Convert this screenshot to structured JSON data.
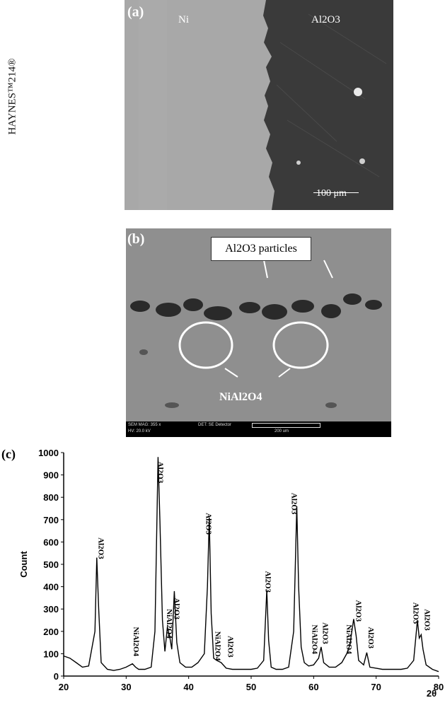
{
  "panel_a": {
    "letter": "(a)",
    "left_label": "Ni",
    "right_label": "Al2O3",
    "side_label": "HAYNES™214®",
    "scale_bar": "100 μm"
  },
  "panel_b": {
    "letter": "(b)",
    "callout": "Al2O3 particles",
    "bottom_label": "NiAl2O4",
    "sem_strip": {
      "mag": "SEM MAG: 355 x",
      "hv": "HV: 20.0 kV",
      "det": "DET: SE Detector",
      "scale": "200 um"
    }
  },
  "panel_c": {
    "letter": "(c)"
  },
  "chart_data": {
    "type": "line",
    "xlabel": "2θ",
    "ylabel": "Count",
    "xlim": [
      20,
      80
    ],
    "ylim": [
      0,
      1000
    ],
    "xticks": [
      20,
      30,
      40,
      50,
      60,
      70,
      80
    ],
    "yticks": [
      0,
      100,
      200,
      300,
      400,
      500,
      600,
      700,
      800,
      900,
      1000
    ],
    "series": [
      {
        "x": [
          20,
          21,
          22,
          23,
          24,
          25,
          25.3,
          25.6,
          26,
          27,
          28,
          29,
          30,
          31,
          31.5,
          32,
          33,
          34,
          34.6,
          35.1,
          35.4,
          35.8,
          36.2,
          36.6,
          37.0,
          37.3,
          37.7,
          38.1,
          38.6,
          39.5,
          40.5,
          41.5,
          42.5,
          43.0,
          43.3,
          43.6,
          44,
          44.5,
          45.2,
          46,
          47,
          48,
          49,
          50,
          51,
          52,
          52.5,
          52.8,
          53.2,
          54,
          55,
          56,
          56.8,
          57.3,
          57.6,
          58,
          58.5,
          59.2,
          60,
          60.8,
          61.2,
          61.6,
          62.5,
          63.5,
          64.5,
          65.3,
          65.8,
          66.4,
          66.8,
          67.2,
          68,
          68.5,
          69,
          70,
          71,
          72,
          73,
          74,
          75,
          76,
          76.6,
          76.9,
          77.2,
          77.5,
          78,
          79,
          80
        ],
        "y": [
          90,
          80,
          60,
          40,
          45,
          200,
          530,
          300,
          60,
          30,
          25,
          30,
          40,
          55,
          40,
          30,
          30,
          40,
          200,
          980,
          700,
          250,
          110,
          220,
          170,
          120,
          380,
          150,
          60,
          40,
          40,
          60,
          100,
          400,
          710,
          280,
          80,
          70,
          60,
          35,
          30,
          30,
          30,
          30,
          35,
          70,
          385,
          160,
          40,
          30,
          30,
          40,
          200,
          760,
          400,
          130,
          60,
          45,
          50,
          80,
          130,
          60,
          40,
          40,
          60,
          100,
          140,
          255,
          180,
          70,
          50,
          105,
          40,
          35,
          30,
          30,
          30,
          30,
          35,
          70,
          250,
          170,
          185,
          120,
          50,
          30,
          20
        ]
      }
    ],
    "annotations": [
      {
        "label": "Al2O3",
        "x": 25.6,
        "y": 620
      },
      {
        "label": "NiAl2O4",
        "x": 31.2,
        "y": 220
      },
      {
        "label": "Al2O3",
        "x": 35.1,
        "y": 960
      },
      {
        "label": "NiAl2O4",
        "x": 36.5,
        "y": 300
      },
      {
        "label": "Al2O3",
        "x": 37.7,
        "y": 350
      },
      {
        "label": "Al2O3",
        "x": 42.8,
        "y": 730
      },
      {
        "label": "NiAl2O4",
        "x": 44.3,
        "y": 200
      },
      {
        "label": "Al2O3",
        "x": 46.3,
        "y": 180
      },
      {
        "label": "Al2O3",
        "x": 52.3,
        "y": 470
      },
      {
        "label": "Al2O3",
        "x": 56.5,
        "y": 820
      },
      {
        "label": "NiAl2O4",
        "x": 59.8,
        "y": 230
      },
      {
        "label": "Al2O3",
        "x": 61.5,
        "y": 240
      },
      {
        "label": "NiAl2O4",
        "x": 65.3,
        "y": 230
      },
      {
        "label": "Al2O3",
        "x": 66.8,
        "y": 340
      },
      {
        "label": "Al2O3",
        "x": 68.8,
        "y": 220
      },
      {
        "label": "Al2O3",
        "x": 76.0,
        "y": 330
      },
      {
        "label": "Al2O3",
        "x": 77.8,
        "y": 300
      }
    ]
  }
}
